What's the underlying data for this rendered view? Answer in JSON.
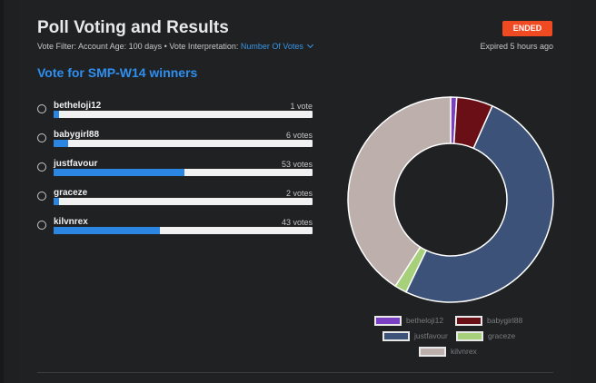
{
  "header": {
    "title": "Poll Voting and Results",
    "status_badge": "ENDED",
    "filter_label": "Vote Filter:",
    "filter_value": "Account Age: 100 days",
    "separator": "•",
    "interpretation_label": "Vote Interpretation:",
    "interpretation_value": "Number Of Votes",
    "expired": "Expired 5 hours ago"
  },
  "poll": {
    "title": "Vote for SMP-W14 winners",
    "options": [
      {
        "name": "betheloji12",
        "votes_text": "1 vote",
        "votes": 1
      },
      {
        "name": "babygirl88",
        "votes_text": "6 votes",
        "votes": 6
      },
      {
        "name": "justfavour",
        "votes_text": "53 votes",
        "votes": 53
      },
      {
        "name": "graceze",
        "votes_text": "2 votes",
        "votes": 2
      },
      {
        "name": "kilvnrex",
        "votes_text": "43 votes",
        "votes": 43
      }
    ]
  },
  "chart_data": {
    "type": "pie",
    "categories": [
      "betheloji12",
      "babygirl88",
      "justfavour",
      "graceze",
      "kilvnrex"
    ],
    "values": [
      1,
      6,
      53,
      2,
      43
    ],
    "colors": [
      "#7b3fc4",
      "#6b0f17",
      "#3d5278",
      "#a6d07a",
      "#bdb0ac"
    ],
    "legend": [
      "betheloji12",
      "babygirl88",
      "justfavour",
      "graceze",
      "kilvnrex"
    ]
  }
}
